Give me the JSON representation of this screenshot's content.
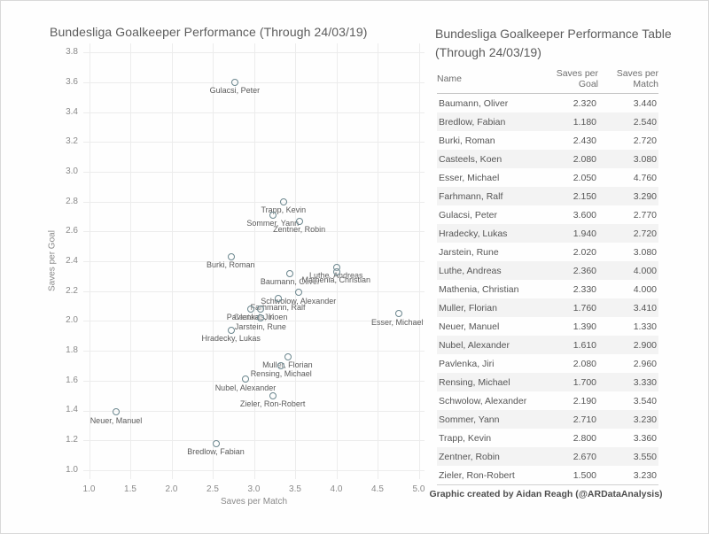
{
  "page": {
    "credit": "Graphic created by Aidan Reagh (@ARDataAnalysis)"
  },
  "chart_data": {
    "type": "scatter",
    "title": "Bundesliga Goalkeeper Performance (Through 24/03/19)",
    "xlabel": "Saves per Match",
    "ylabel": "Saves per Goal",
    "xlim": [
      1.0,
      5.0
    ],
    "ylim": [
      1.0,
      3.8
    ],
    "x_ticks": [
      1.0,
      1.5,
      2.0,
      2.5,
      3.0,
      3.5,
      4.0,
      4.5,
      5.0
    ],
    "y_ticks": [
      1.0,
      1.2,
      1.4,
      1.6,
      1.8,
      2.0,
      2.2,
      2.4,
      2.6,
      2.8,
      3.0,
      3.2,
      3.4,
      3.6,
      3.8
    ],
    "grid": true,
    "legend": "none",
    "marker_color": "#6b868e",
    "points": [
      {
        "label": "Baumann, Oliver",
        "x": 3.44,
        "y": 2.32
      },
      {
        "label": "Bredlow, Fabian",
        "x": 2.54,
        "y": 1.18
      },
      {
        "label": "Burki, Roman",
        "x": 2.72,
        "y": 2.43
      },
      {
        "label": "Casteels, Koen",
        "x": 3.08,
        "y": 2.08
      },
      {
        "label": "Esser, Michael",
        "x": 4.76,
        "y": 2.05
      },
      {
        "label": "Farhmann, Ralf",
        "x": 3.29,
        "y": 2.15
      },
      {
        "label": "Gulacsi, Peter",
        "x": 2.77,
        "y": 3.6
      },
      {
        "label": "Hradecky, Lukas",
        "x": 2.72,
        "y": 1.94
      },
      {
        "label": "Jarstein, Rune",
        "x": 3.08,
        "y": 2.02
      },
      {
        "label": "Luthe, Andreas",
        "x": 4.0,
        "y": 2.36
      },
      {
        "label": "Mathenia, Christian",
        "x": 4.0,
        "y": 2.33
      },
      {
        "label": "Muller, Florian",
        "x": 3.41,
        "y": 1.76
      },
      {
        "label": "Neuer, Manuel",
        "x": 1.33,
        "y": 1.39
      },
      {
        "label": "Nubel, Alexander",
        "x": 2.9,
        "y": 1.61
      },
      {
        "label": "Pavlenka, Jiri",
        "x": 2.96,
        "y": 2.08
      },
      {
        "label": "Rensing, Michael",
        "x": 3.33,
        "y": 1.7
      },
      {
        "label": "Schwolow, Alexander",
        "x": 3.54,
        "y": 2.19
      },
      {
        "label": "Sommer, Yann",
        "x": 3.23,
        "y": 2.71
      },
      {
        "label": "Trapp, Kevin",
        "x": 3.36,
        "y": 2.8
      },
      {
        "label": "Zentner, Robin",
        "x": 3.55,
        "y": 2.67
      },
      {
        "label": "Zieler, Ron-Robert",
        "x": 3.23,
        "y": 1.5
      }
    ]
  },
  "table": {
    "title": "Bundesliga Goalkeeper Performance Table (Through 24/03/19)",
    "columns": [
      "Name",
      "Saves per Goal",
      "Saves per Match"
    ],
    "rows": [
      [
        "Baumann, Oliver",
        "2.320",
        "3.440"
      ],
      [
        "Bredlow, Fabian",
        "1.180",
        "2.540"
      ],
      [
        "Burki, Roman",
        "2.430",
        "2.720"
      ],
      [
        "Casteels, Koen",
        "2.080",
        "3.080"
      ],
      [
        "Esser, Michael",
        "2.050",
        "4.760"
      ],
      [
        "Farhmann, Ralf",
        "2.150",
        "3.290"
      ],
      [
        "Gulacsi, Peter",
        "3.600",
        "2.770"
      ],
      [
        "Hradecky, Lukas",
        "1.940",
        "2.720"
      ],
      [
        "Jarstein, Rune",
        "2.020",
        "3.080"
      ],
      [
        "Luthe, Andreas",
        "2.360",
        "4.000"
      ],
      [
        "Mathenia, Christian",
        "2.330",
        "4.000"
      ],
      [
        "Muller, Florian",
        "1.760",
        "3.410"
      ],
      [
        "Neuer, Manuel",
        "1.390",
        "1.330"
      ],
      [
        "Nubel, Alexander",
        "1.610",
        "2.900"
      ],
      [
        "Pavlenka, Jiri",
        "2.080",
        "2.960"
      ],
      [
        "Rensing, Michael",
        "1.700",
        "3.330"
      ],
      [
        "Schwolow, Alexander",
        "2.190",
        "3.540"
      ],
      [
        "Sommer, Yann",
        "2.710",
        "3.230"
      ],
      [
        "Trapp, Kevin",
        "2.800",
        "3.360"
      ],
      [
        "Zentner, Robin",
        "2.670",
        "3.550"
      ],
      [
        "Zieler, Ron-Robert",
        "1.500",
        "3.230"
      ]
    ]
  }
}
